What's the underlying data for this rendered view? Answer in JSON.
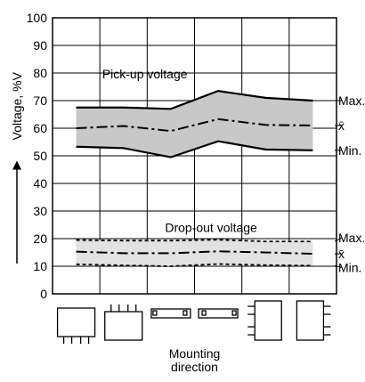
{
  "chart_data": {
    "type": "line",
    "ylabel": "Voltage, %V",
    "xlabel": "Mounting direction",
    "ylim": [
      0,
      100
    ],
    "yticks": [
      0,
      10,
      20,
      30,
      40,
      50,
      60,
      70,
      80,
      90,
      100
    ],
    "grid": true,
    "categories_icons": [
      "relay-standard-icon",
      "relay-upside-down-icon",
      "relay-horizontal-left-icon",
      "relay-horizontal-right-icon",
      "relay-vertical-terminals-left-icon",
      "relay-vertical-terminals-right-icon"
    ],
    "x_positions": [
      1,
      2,
      3,
      4,
      5,
      6
    ],
    "groups": [
      {
        "name": "Pick-up voltage",
        "band_color": "#c8c8c8",
        "series": [
          {
            "name": "Max.",
            "style": "solid",
            "values": [
              67.5,
              67.5,
              67,
              73.5,
              71,
              70
            ]
          },
          {
            "name": "x̄",
            "style": "dashdot",
            "values": [
              60,
              60.8,
              59,
              63.3,
              61.2,
              61
            ]
          },
          {
            "name": "Min.",
            "style": "solid",
            "values": [
              53.3,
              52.8,
              49.5,
              55.3,
              52.3,
              52
            ]
          }
        ]
      },
      {
        "name": "Drop-out voltage",
        "band_color": "#e2e2e2",
        "series": [
          {
            "name": "Max.",
            "style": "dashed",
            "values": [
              19.5,
              19.3,
              19.3,
              19.6,
              19,
              19
            ]
          },
          {
            "name": "x̄",
            "style": "dashdot",
            "values": [
              15.3,
              14.7,
              14.7,
              15.4,
              15,
              14.5
            ]
          },
          {
            "name": "Min.",
            "style": "dashed",
            "values": [
              10.7,
              10.3,
              10,
              10.8,
              10.4,
              10.2
            ]
          }
        ]
      }
    ]
  }
}
